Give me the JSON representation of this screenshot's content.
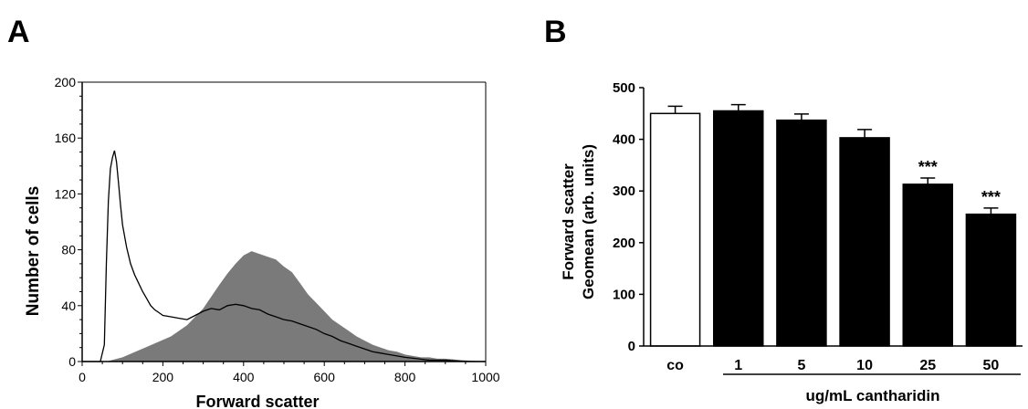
{
  "panels": {
    "a": "A",
    "b": "B"
  },
  "chart_data": [
    {
      "type": "area",
      "panel": "A",
      "xlabel": "Forward scatter",
      "ylabel": "Number of cells",
      "xlim": [
        0,
        1000
      ],
      "ylim": [
        0,
        200
      ],
      "xticks": [
        0,
        200,
        400,
        600,
        800,
        1000
      ],
      "yticks": [
        0,
        40,
        80,
        120,
        160,
        200
      ],
      "grid": false,
      "series": [
        {
          "style": "outline",
          "color": "#000000",
          "x": [
            0,
            45,
            55,
            60,
            65,
            70,
            75,
            80,
            85,
            90,
            95,
            100,
            110,
            120,
            130,
            140,
            150,
            160,
            170,
            180,
            190,
            200,
            220,
            240,
            260,
            280,
            300,
            320,
            340,
            360,
            380,
            400,
            420,
            440,
            460,
            480,
            500,
            520,
            540,
            560,
            580,
            600,
            620,
            640,
            660,
            680,
            700,
            720,
            740,
            760,
            780,
            800,
            830,
            860,
            900,
            950,
            1000
          ],
          "y": [
            0,
            0,
            12,
            70,
            115,
            138,
            146,
            151,
            143,
            128,
            112,
            98,
            82,
            70,
            62,
            56,
            50,
            45,
            40,
            37,
            35,
            33,
            32,
            31,
            30,
            33,
            36,
            38,
            37,
            40,
            41,
            40,
            38,
            37,
            34,
            32,
            30,
            29,
            27,
            25,
            23,
            20,
            18,
            15,
            13,
            11,
            9,
            7,
            6,
            5,
            4,
            3,
            2,
            1,
            1,
            0,
            0
          ]
        },
        {
          "style": "filled",
          "color": "#7a7a7a",
          "x": [
            0,
            60,
            100,
            140,
            180,
            220,
            260,
            300,
            340,
            360,
            380,
            400,
            420,
            440,
            460,
            480,
            500,
            520,
            540,
            560,
            580,
            600,
            620,
            640,
            660,
            680,
            700,
            720,
            740,
            760,
            780,
            800,
            820,
            840,
            860,
            880,
            900,
            940,
            1000
          ],
          "y": [
            0,
            0,
            3,
            8,
            13,
            18,
            26,
            38,
            55,
            63,
            70,
            76,
            79,
            77,
            75,
            73,
            68,
            64,
            56,
            48,
            42,
            36,
            30,
            26,
            22,
            18,
            15,
            12,
            10,
            8,
            7,
            5,
            4,
            3,
            3,
            2,
            2,
            1,
            0
          ]
        }
      ]
    },
    {
      "type": "bar",
      "panel": "B",
      "ylabel_lines": [
        "Forward scatter",
        "Geomean (arb. units)"
      ],
      "xlabel": "ug/mL cantharidin",
      "categories": [
        "co",
        "1",
        "5",
        "10",
        "25",
        "50"
      ],
      "values": [
        450,
        455,
        437,
        403,
        313,
        255
      ],
      "errors": [
        14,
        12,
        12,
        16,
        12,
        12
      ],
      "fills": [
        "#ffffff",
        "#000000",
        "#000000",
        "#000000",
        "#000000",
        "#000000"
      ],
      "annotations": [
        "",
        "",
        "",
        "",
        "***",
        "***"
      ],
      "ylim": [
        0,
        500
      ],
      "yticks": [
        0,
        100,
        200,
        300,
        400,
        500
      ],
      "grid": false
    }
  ]
}
